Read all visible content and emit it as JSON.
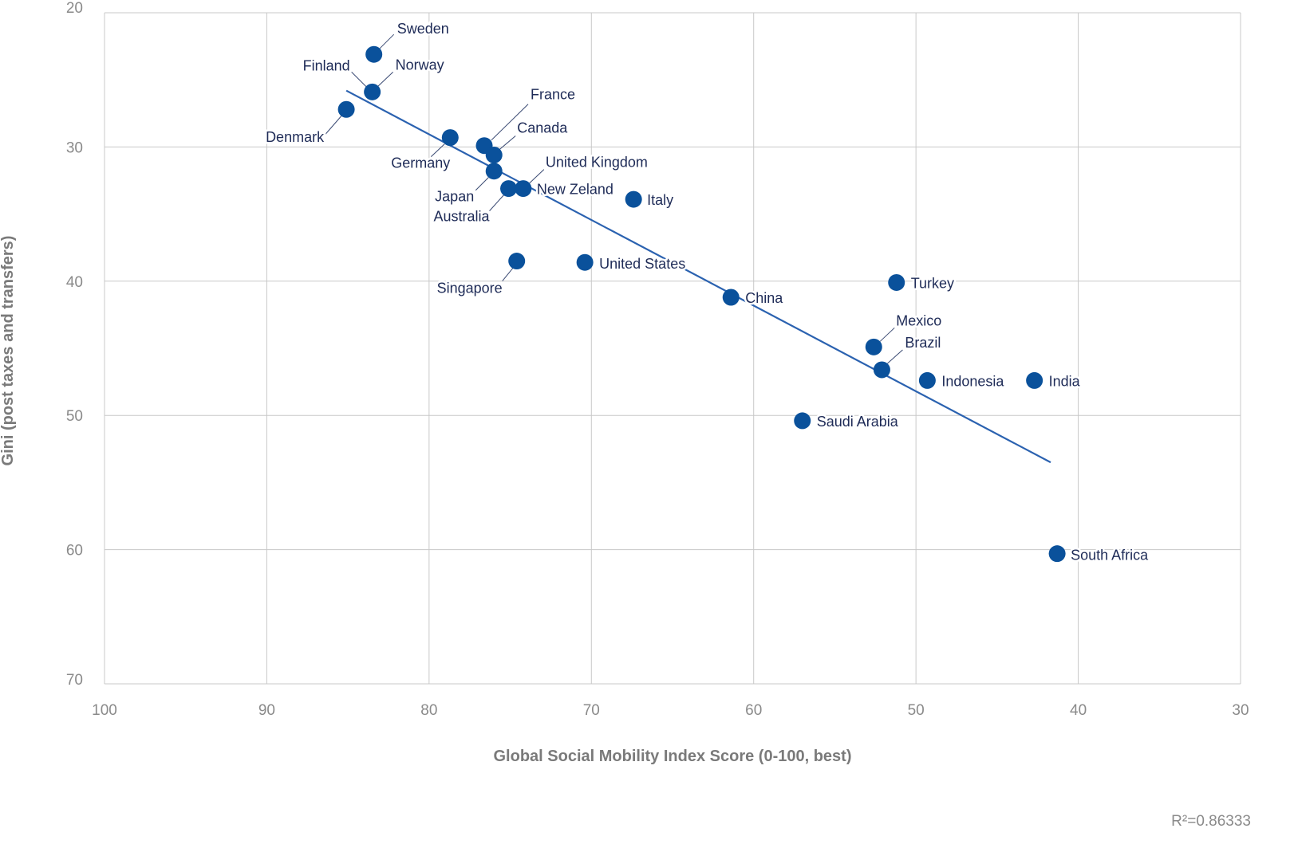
{
  "chart_data": {
    "type": "scatter",
    "title": "",
    "xlabel": "Global Social Mobility Index Score (0-100, best)",
    "ylabel": "Gini (post taxes and transfers)",
    "xlim": [
      100,
      30
    ],
    "ylim": [
      20,
      70
    ],
    "x_reversed": true,
    "y_reversed": true,
    "x_ticks": [
      "100",
      "90",
      "80",
      "70",
      "60",
      "50",
      "40",
      "30"
    ],
    "y_ticks": [
      "20",
      "30",
      "40",
      "50",
      "60",
      "70"
    ],
    "grid": true,
    "points": [
      {
        "label": "Sweden",
        "x": 83.4,
        "y": 23.1
      },
      {
        "label": "Finland",
        "x": 83.5,
        "y": 25.9
      },
      {
        "label": "Norway",
        "x": 83.5,
        "y": 25.9
      },
      {
        "label": "Denmark",
        "x": 85.1,
        "y": 27.2
      },
      {
        "label": "Germany",
        "x": 78.7,
        "y": 29.3
      },
      {
        "label": "France",
        "x": 76.6,
        "y": 29.9
      },
      {
        "label": "Canada",
        "x": 76.0,
        "y": 30.6
      },
      {
        "label": "Japan",
        "x": 76.0,
        "y": 31.8
      },
      {
        "label": "Australia",
        "x": 75.1,
        "y": 33.1
      },
      {
        "label": "United Kingdom",
        "x": 74.2,
        "y": 33.1
      },
      {
        "label": "New Zeland",
        "x": 74.2,
        "y": 33.1
      },
      {
        "label": "Italy",
        "x": 67.4,
        "y": 33.9
      },
      {
        "label": "Singapore",
        "x": 74.6,
        "y": 38.5
      },
      {
        "label": "United States",
        "x": 70.4,
        "y": 38.6
      },
      {
        "label": "China",
        "x": 61.4,
        "y": 41.2
      },
      {
        "label": "Turkey",
        "x": 51.2,
        "y": 40.1
      },
      {
        "label": "Mexico",
        "x": 52.6,
        "y": 44.9
      },
      {
        "label": "Brazil",
        "x": 52.1,
        "y": 46.6
      },
      {
        "label": "Indonesia",
        "x": 49.3,
        "y": 47.4
      },
      {
        "label": "India",
        "x": 42.7,
        "y": 47.4
      },
      {
        "label": "Saudi Arabia",
        "x": 57.0,
        "y": 50.4
      },
      {
        "label": "South Africa",
        "x": 41.3,
        "y": 60.3
      }
    ],
    "trendline": {
      "x": [
        85.1,
        41.7
      ],
      "y": [
        25.8,
        53.5
      ]
    },
    "annotation": "R²=0.86333",
    "colors": {
      "point": "#0a519b",
      "trendline": "#2b62b0",
      "label": "#1e2b57",
      "grid": "#c8c8c8"
    }
  }
}
